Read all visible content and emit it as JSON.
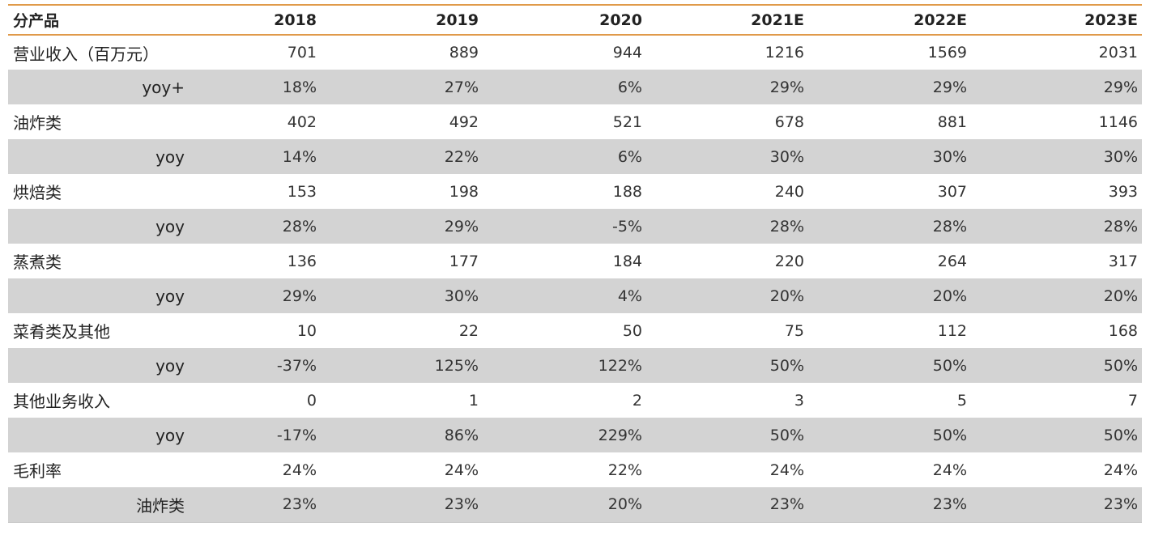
{
  "table": {
    "headers": [
      "分产品",
      "2018",
      "2019",
      "2020",
      "2021E",
      "2022E",
      "2023E"
    ],
    "rows": [
      {
        "label": "营业收入（百万元）",
        "values": [
          "701",
          "889",
          "944",
          "1216",
          "1569",
          "2031"
        ]
      },
      {
        "label": "yoy+",
        "values": [
          "18%",
          "27%",
          "6%",
          "29%",
          "29%",
          "29%"
        ]
      },
      {
        "label": "油炸类",
        "values": [
          "402",
          "492",
          "521",
          "678",
          "881",
          "1146"
        ]
      },
      {
        "label": "yoy",
        "values": [
          "14%",
          "22%",
          "6%",
          "30%",
          "30%",
          "30%"
        ]
      },
      {
        "label": "烘焙类",
        "values": [
          "153",
          "198",
          "188",
          "240",
          "307",
          "393"
        ]
      },
      {
        "label": "yoy",
        "values": [
          "28%",
          "29%",
          "-5%",
          "28%",
          "28%",
          "28%"
        ]
      },
      {
        "label": "蒸煮类",
        "values": [
          "136",
          "177",
          "184",
          "220",
          "264",
          "317"
        ]
      },
      {
        "label": "yoy",
        "values": [
          "29%",
          "30%",
          "4%",
          "20%",
          "20%",
          "20%"
        ]
      },
      {
        "label": "菜肴类及其他",
        "values": [
          "10",
          "22",
          "50",
          "75",
          "112",
          "168"
        ]
      },
      {
        "label": "yoy",
        "values": [
          "-37%",
          "125%",
          "122%",
          "50%",
          "50%",
          "50%"
        ]
      },
      {
        "label": "其他业务收入",
        "values": [
          "0",
          "1",
          "2",
          "3",
          "5",
          "7"
        ]
      },
      {
        "label": "yoy",
        "values": [
          "-17%",
          "86%",
          "229%",
          "50%",
          "50%",
          "50%"
        ]
      },
      {
        "label": "毛利率",
        "values": [
          "24%",
          "24%",
          "22%",
          "24%",
          "24%",
          "24%"
        ]
      },
      {
        "label": "油炸类",
        "values": [
          "23%",
          "23%",
          "20%",
          "23%",
          "23%",
          "23%"
        ]
      }
    ]
  }
}
